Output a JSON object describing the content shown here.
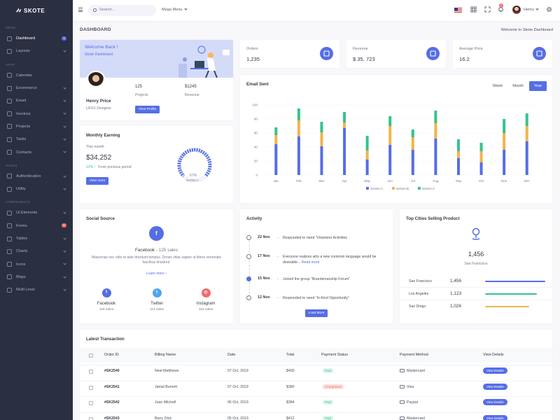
{
  "brand": {
    "name": "SKOTE"
  },
  "sidebar": {
    "section_menu": "Menu",
    "section_apps": "Apps",
    "section_pages": "Pages",
    "section_components": "Components",
    "menu": [
      {
        "label": "Dashboard",
        "badge": "3"
      },
      {
        "label": "Layouts"
      }
    ],
    "apps": [
      {
        "label": "Calendar"
      },
      {
        "label": "Ecommerce"
      },
      {
        "label": "Email"
      },
      {
        "label": "Invoices"
      },
      {
        "label": "Projects"
      },
      {
        "label": "Tasks"
      },
      {
        "label": "Contacts"
      }
    ],
    "pages": [
      {
        "label": "Authentication"
      },
      {
        "label": "Utility"
      }
    ],
    "components": [
      {
        "label": "Ui Elements"
      },
      {
        "label": "Forms",
        "badge": "6"
      },
      {
        "label": "Tables"
      },
      {
        "label": "Charts"
      },
      {
        "label": "Icons"
      },
      {
        "label": "Maps"
      },
      {
        "label": "Multi Level"
      }
    ]
  },
  "topbar": {
    "search_placeholder": "Search...",
    "mega_menu": "Mega Menu",
    "notification_count": "3",
    "user_name": "Henry"
  },
  "page": {
    "title": "DASHBOARD",
    "breadcrumb": "Welcome to Skote Dashboard"
  },
  "welcome": {
    "heading": "Welcome Back !",
    "subheading": "Skote Dashboard",
    "name": "Henry Price",
    "role": "UI/UX Designer",
    "projects_value": "125",
    "projects_label": "Projects",
    "revenue_value": "$1245",
    "revenue_label": "Revenue",
    "button": "View Profile"
  },
  "monthly": {
    "title": "Monthly Earning",
    "period": "This month",
    "amount": "$34,252",
    "change": "12%",
    "change_text": "From previous period",
    "button": "View more",
    "gauge_value": "67%",
    "gauge_label": "Series A",
    "gauge_fraction": 0.67
  },
  "stats": [
    {
      "label": "Orders",
      "value": "1,235",
      "icon": "copy-icon"
    },
    {
      "label": "Revenue",
      "value": "$ 35, 723",
      "icon": "archive-icon"
    },
    {
      "label": "Average Price",
      "value": "16.2",
      "icon": "tag-icon"
    }
  ],
  "email_chart": {
    "title": "Email Sent",
    "tabs": [
      "Week",
      "Month",
      "Year"
    ],
    "active_tab": "Year"
  },
  "chart_data": {
    "type": "bar",
    "stacked": true,
    "categories": [
      "Jan",
      "Feb",
      "Mar",
      "Apr",
      "May",
      "Jun",
      "Jul",
      "Aug",
      "Sep",
      "Oct",
      "Nov",
      "Dec"
    ],
    "series": [
      {
        "name": "Series A",
        "color": "#556ee6",
        "values": [
          44,
          55,
          41,
          67,
          22,
          43,
          36,
          52,
          24,
          18,
          36,
          48
        ]
      },
      {
        "name": "Series B",
        "color": "#f1b44c",
        "values": [
          13,
          23,
          20,
          8,
          13,
          27,
          18,
          22,
          10,
          16,
          24,
          22
        ]
      },
      {
        "name": "Series C",
        "color": "#34c38f",
        "values": [
          11,
          17,
          15,
          15,
          21,
          14,
          11,
          18,
          17,
          12,
          20,
          18
        ]
      }
    ],
    "ylim": [
      0,
      100
    ],
    "yticks": [
      0,
      20,
      40,
      60,
      80,
      100
    ],
    "grid": true,
    "legend": "bottom"
  },
  "social": {
    "title": "Social Source",
    "headline": "Facebook",
    "headline_sales": " - 125 sales",
    "text": "Maecenas nec odio et ante tincidunt tempus. Donec vitae sapien ut libero venenatis faucibus tincidunt.",
    "learn_more": "Learn more",
    "items": [
      {
        "name": "Facebook",
        "sales": "125 sales",
        "color": "#556ee6"
      },
      {
        "name": "Twitter",
        "sales": "112 sales",
        "color": "#50a5f1"
      },
      {
        "name": "Instagram",
        "sales": "104 sales",
        "color": "#f46a6a"
      }
    ]
  },
  "activity": {
    "title": "Activity",
    "items": [
      {
        "date": "22 Nov",
        "text": "Responded to need “Volunteer Activities"
      },
      {
        "date": "17 Nov",
        "text": "Everyone realizes why a new common language would be desirable...",
        "link": "Read more"
      },
      {
        "date": "15 Nov",
        "text": "Joined the group “Boardsmanship Forum”"
      },
      {
        "date": "12 Nov",
        "text": "Responded to need “In-Kind Opportunity”"
      }
    ],
    "button": "Load More"
  },
  "top_cities": {
    "title": "Top Cities Selling Product",
    "value": "1,456",
    "city": "San Francisco",
    "rows": [
      {
        "city": "San Francisco",
        "value": "1,456",
        "fraction": 0.95,
        "color": "#556ee6"
      },
      {
        "city": "Los Angeles",
        "value": "1,123",
        "fraction": 0.82,
        "color": "#34c38f"
      },
      {
        "city": "San Diego",
        "value": "1,026",
        "fraction": 0.7,
        "color": "#f1b44c"
      }
    ]
  },
  "transactions": {
    "title": "Latest Transaction",
    "headers": [
      "Order ID",
      "Billing Name",
      "Date",
      "Total",
      "Payment Status",
      "Payment Method",
      "View Details"
    ],
    "rows": [
      {
        "id": "#SK2540",
        "name": "Neal Matthews",
        "date": "07 Oct, 2019",
        "total": "$400",
        "status": "Paid",
        "method": "Mastercard",
        "button": "View Details"
      },
      {
        "id": "#SK2541",
        "name": "Jamal Burnett",
        "date": "07 Oct, 2019",
        "total": "$380",
        "status": "Chargeback",
        "method": "Visa",
        "button": "View Details"
      },
      {
        "id": "#SK2542",
        "name": "Juan Mitchell",
        "date": "06 Oct, 2019",
        "total": "$384",
        "status": "Paid",
        "method": "Paypal",
        "button": "View Details"
      },
      {
        "id": "#SK2543",
        "name": "Barry Dick",
        "date": "05 Oct, 2019",
        "total": "$412",
        "status": "Paid",
        "method": "Mastercard",
        "button": "View Details"
      }
    ]
  },
  "colors": {
    "primary": "#556ee6",
    "success": "#34c38f",
    "warning": "#f1b44c",
    "danger": "#f46a6a",
    "sidebar": "#2a3042"
  }
}
